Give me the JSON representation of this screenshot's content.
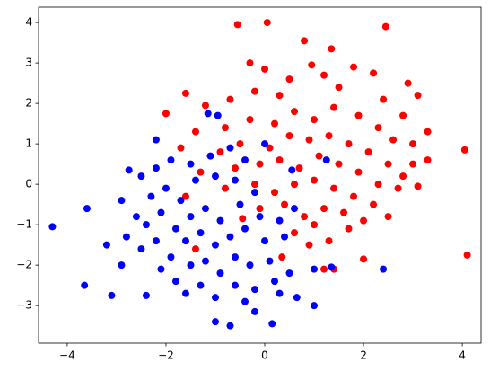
{
  "chart_data": {
    "type": "scatter",
    "xlim": [
      -4.58,
      4.38
    ],
    "ylim": [
      -3.93,
      4.38
    ],
    "xticks": [
      {
        "value": -4,
        "label": "−4"
      },
      {
        "value": -2,
        "label": "−2"
      },
      0,
      2,
      4
    ],
    "yticks": [
      {
        "value": -3,
        "label": "−3"
      },
      {
        "value": -2,
        "label": "−2"
      },
      {
        "value": -1,
        "label": "−1"
      },
      0,
      1,
      2,
      3,
      4
    ],
    "series": [
      {
        "color": "#ff0000",
        "x": [
          -0.55,
          0.05,
          2.45,
          0.8,
          1.35,
          4.05,
          4.1,
          -1.6,
          -2.0,
          2.0,
          1.2,
          1.4,
          3.3,
          3.3,
          3.0,
          3.1,
          -0.45,
          0.35,
          -0.3,
          0.0,
          0.95,
          1.8,
          2.2,
          2.9,
          3.1,
          0.5,
          1.2,
          -0.7,
          -1.2,
          -0.2,
          0.3,
          1.5,
          2.4,
          2.8,
          -1.4,
          -0.8,
          -0.3,
          0.2,
          0.6,
          1.0,
          1.4,
          1.9,
          2.3,
          2.6,
          3.0,
          -1.7,
          -0.9,
          -0.5,
          0.1,
          0.5,
          0.9,
          1.3,
          1.7,
          2.1,
          2.5,
          2.8,
          -1.3,
          -0.6,
          -0.1,
          0.3,
          0.7,
          1.1,
          1.5,
          1.9,
          2.3,
          2.7,
          -0.8,
          -0.2,
          0.2,
          0.6,
          1.0,
          1.4,
          1.8,
          2.2,
          -0.1,
          0.4,
          0.8,
          1.2,
          1.6,
          2.0,
          2.5,
          0.6,
          1.0,
          1.3,
          1.7,
          0.9,
          -1.6,
          -1.4
        ],
        "values": [
          3.95,
          4.0,
          3.9,
          3.55,
          3.35,
          0.85,
          -1.75,
          2.25,
          1.75,
          -1.85,
          -2.1,
          -2.1,
          1.3,
          0.6,
          0.5,
          -0.05,
          -0.85,
          -1.8,
          3.0,
          2.85,
          2.95,
          2.9,
          2.75,
          2.5,
          2.2,
          2.6,
          2.7,
          2.1,
          1.95,
          2.3,
          2.2,
          2.4,
          2.1,
          1.7,
          1.3,
          1.4,
          1.6,
          1.5,
          1.8,
          1.6,
          1.9,
          1.7,
          1.4,
          1.1,
          1.0,
          0.9,
          0.8,
          1.0,
          0.9,
          1.2,
          1.1,
          1.2,
          1.0,
          0.8,
          0.5,
          0.2,
          0.3,
          0.4,
          0.5,
          0.6,
          0.4,
          0.7,
          0.5,
          0.3,
          0.0,
          -0.1,
          -0.1,
          0.0,
          -0.2,
          0.0,
          0.1,
          -0.1,
          -0.3,
          -0.5,
          -0.6,
          -0.5,
          -0.8,
          -0.6,
          -0.7,
          -0.9,
          -0.8,
          -1.2,
          -1.0,
          -1.4,
          -1.1,
          -1.5,
          -0.3,
          -1.6
        ]
      },
      {
        "color": "#0000ff",
        "x": [
          -4.3,
          -3.65,
          -3.6,
          -3.1,
          -3.2,
          -2.9,
          -2.75,
          -2.4,
          -1.0,
          -0.7,
          -0.2,
          0.15,
          0.65,
          1.0,
          2.4,
          1.0,
          -2.2,
          -1.15,
          -0.95,
          0.0,
          1.25,
          0.55,
          -2.9,
          -2.5,
          -2.2,
          -1.9,
          -1.5,
          -1.1,
          -0.7,
          -0.4,
          -2.6,
          -2.3,
          -2.0,
          -1.7,
          -1.4,
          -1.0,
          -0.6,
          -0.2,
          -2.8,
          -2.4,
          -2.1,
          -1.8,
          -1.5,
          -1.2,
          -0.9,
          -0.5,
          -0.1,
          0.3,
          0.6,
          -2.5,
          -2.2,
          -1.9,
          -1.6,
          -1.3,
          -1.0,
          -0.7,
          -0.4,
          0.0,
          0.4,
          -2.1,
          -1.8,
          -1.5,
          -1.2,
          -0.9,
          -0.6,
          -0.3,
          0.1,
          0.5,
          -1.6,
          -1.3,
          -1.0,
          -0.6,
          -0.2,
          0.2,
          -0.4,
          0.3,
          1.35
        ],
        "values": [
          -1.05,
          -2.5,
          -0.6,
          -2.75,
          -1.5,
          -2.0,
          0.35,
          -2.75,
          -3.4,
          -3.5,
          -3.15,
          -3.45,
          -2.8,
          -3.0,
          -2.1,
          -2.1,
          1.1,
          1.75,
          1.7,
          1.0,
          0.6,
          0.35,
          -0.4,
          0.2,
          0.4,
          0.6,
          0.5,
          0.7,
          0.9,
          0.6,
          -0.8,
          -0.3,
          -0.1,
          -0.4,
          0.1,
          0.2,
          0.1,
          -0.2,
          -1.3,
          -1.0,
          -0.7,
          -1.1,
          -0.8,
          -0.6,
          -0.9,
          -0.5,
          -0.8,
          -0.9,
          -0.6,
          -1.6,
          -1.4,
          -1.8,
          -1.4,
          -1.2,
          -1.5,
          -1.3,
          -1.1,
          -1.4,
          -1.3,
          -2.1,
          -2.4,
          -2.0,
          -1.9,
          -2.2,
          -1.8,
          -2.0,
          -1.9,
          -2.2,
          -2.7,
          -2.5,
          -2.8,
          -2.5,
          -2.6,
          -2.4,
          -2.9,
          -2.7,
          -2.05
        ]
      }
    ]
  }
}
